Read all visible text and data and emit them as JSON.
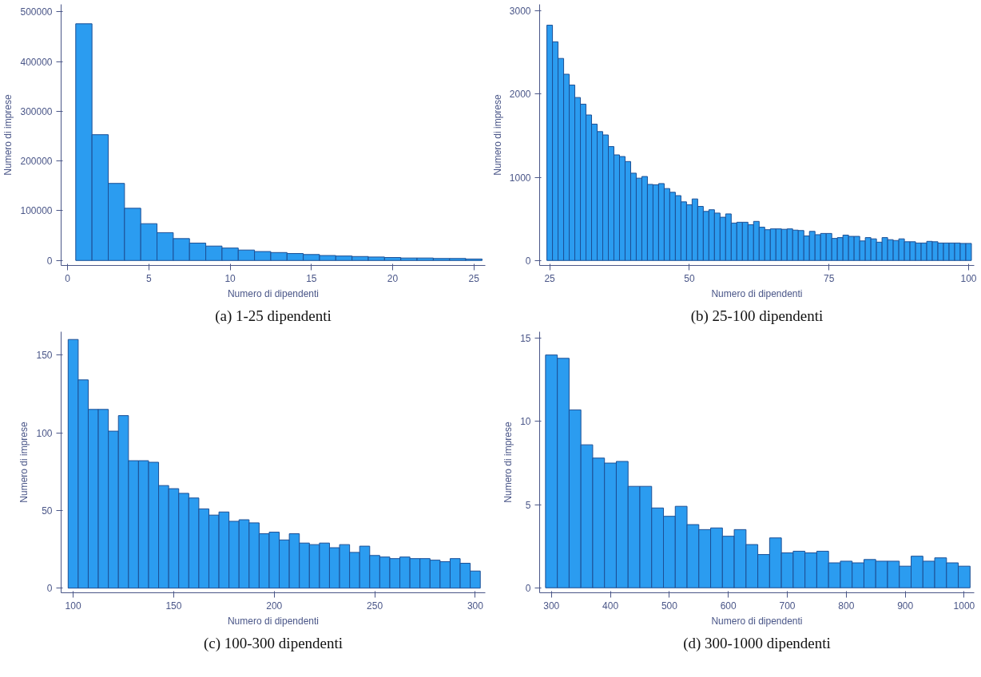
{
  "chart_data": [
    {
      "type": "histogram",
      "title": "(a) 1-25 dipendenti",
      "xlabel": "Numero di dipendenti",
      "ylabel": "Numero di imprese",
      "color": "#2b9cf0",
      "bins": [
        0.5,
        1.5,
        2.5,
        3.5,
        4.5,
        5.5,
        6.5,
        7.5,
        8.5,
        9.5,
        10.5,
        11.5,
        12.5,
        13.5,
        14.5,
        15.5,
        16.5,
        17.5,
        18.5,
        19.5,
        20.5,
        21.5,
        22.5,
        23.5,
        24.5,
        25.5
      ],
      "values": [
        476000,
        253000,
        155000,
        105000,
        74000,
        56000,
        44000,
        35000,
        29000,
        25000,
        21000,
        18000,
        16000,
        14000,
        12000,
        10000,
        9000,
        8000,
        7000,
        6000,
        5000,
        5000,
        4000,
        4000,
        3000
      ],
      "xlim": [
        -0.4,
        25.7
      ],
      "xticks": [
        0,
        5,
        10,
        15,
        20,
        25
      ],
      "ylim": [
        -10000,
        515000
      ],
      "yticks": [
        0,
        100000,
        200000,
        300000,
        400000,
        500000
      ]
    },
    {
      "type": "histogram",
      "title": "(b) 25-100 dipendenti",
      "xlabel": "Numero di dipendenti",
      "ylabel": "Numero di imprese",
      "color": "#2b9cf0",
      "bins": [
        24.5,
        25.5,
        26.5,
        27.5,
        28.5,
        29.5,
        30.5,
        31.5,
        32.5,
        33.5,
        34.5,
        35.5,
        36.5,
        37.5,
        38.5,
        39.5,
        40.5,
        41.5,
        42.5,
        43.5,
        44.5,
        45.5,
        46.5,
        47.5,
        48.5,
        49.5,
        50.5,
        51.5,
        52.5,
        53.5,
        54.5,
        55.5,
        56.5,
        57.5,
        58.5,
        59.5,
        60.5,
        61.5,
        62.5,
        63.5,
        64.5,
        65.5,
        66.5,
        67.5,
        68.5,
        69.5,
        70.5,
        71.5,
        72.5,
        73.5,
        74.5,
        75.5,
        76.5,
        77.5,
        78.5,
        79.5,
        80.5,
        81.5,
        82.5,
        83.5,
        84.5,
        85.5,
        86.5,
        87.5,
        88.5,
        89.5,
        90.5,
        91.5,
        92.5,
        93.5,
        94.5,
        95.5,
        96.5,
        97.5,
        98.5,
        99.5,
        100.5
      ],
      "values": [
        2830,
        2630,
        2430,
        2240,
        2110,
        1960,
        1880,
        1750,
        1640,
        1550,
        1510,
        1370,
        1270,
        1250,
        1190,
        1050,
        990,
        1010,
        915,
        910,
        925,
        865,
        820,
        780,
        705,
        670,
        740,
        650,
        590,
        610,
        570,
        520,
        560,
        450,
        460,
        460,
        430,
        470,
        400,
        370,
        380,
        380,
        375,
        380,
        365,
        360,
        295,
        350,
        310,
        325,
        325,
        265,
        275,
        305,
        290,
        290,
        235,
        275,
        260,
        220,
        275,
        250,
        240,
        260,
        225,
        225,
        210,
        210,
        230,
        225,
        210,
        210,
        210,
        210,
        205,
        205
      ],
      "xlim": [
        23.2,
        101.0
      ],
      "xticks": [
        25,
        50,
        75,
        100
      ],
      "ylim": [
        -60,
        3080
      ],
      "yticks": [
        0,
        1000,
        2000,
        3000
      ]
    },
    {
      "type": "histogram",
      "title": "(c) 100-300 dipendenti",
      "xlabel": "Numero di dipendenti",
      "ylabel": "Numero di imprese",
      "color": "#2b9cf0",
      "bins": [
        97.5,
        102.5,
        107.5,
        112.5,
        117.5,
        122.5,
        127.5,
        132.5,
        137.5,
        142.5,
        147.5,
        152.5,
        157.5,
        162.5,
        167.5,
        172.5,
        177.5,
        182.5,
        187.5,
        192.5,
        197.5,
        202.5,
        207.5,
        212.5,
        217.5,
        222.5,
        227.5,
        232.5,
        237.5,
        242.5,
        247.5,
        252.5,
        257.5,
        262.5,
        267.5,
        272.5,
        277.5,
        282.5,
        287.5,
        292.5,
        297.5,
        302.5
      ],
      "values": [
        160,
        134,
        115,
        115,
        101,
        111,
        82,
        82,
        81,
        66,
        64,
        61,
        58,
        51,
        47,
        49,
        43,
        44,
        42,
        35,
        36,
        31,
        35,
        29,
        28,
        29,
        26,
        28,
        23,
        27,
        21,
        20,
        19,
        20,
        19,
        19,
        18,
        17,
        19,
        16,
        11
      ],
      "xlim": [
        94,
        305
      ],
      "xticks": [
        100,
        150,
        200,
        250,
        300
      ],
      "ylim": [
        -3,
        165
      ],
      "yticks": [
        0,
        50,
        100,
        150
      ]
    },
    {
      "type": "histogram",
      "title": "(d) 300-1000 dipendenti",
      "xlabel": "Numero di dipendenti",
      "ylabel": "Numero di imprese",
      "color": "#2b9cf0",
      "bins": [
        290,
        310,
        330,
        350,
        370,
        390,
        410,
        430,
        450,
        470,
        490,
        510,
        530,
        550,
        570,
        590,
        610,
        630,
        650,
        670,
        690,
        710,
        730,
        750,
        770,
        790,
        810,
        830,
        850,
        870,
        890,
        910,
        930,
        950,
        970,
        990,
        1010
      ],
      "values": [
        14.0,
        13.8,
        10.7,
        8.6,
        7.8,
        7.5,
        7.6,
        6.1,
        6.1,
        4.8,
        4.3,
        4.9,
        3.8,
        3.5,
        3.6,
        3.1,
        3.5,
        2.6,
        2.0,
        3.0,
        2.1,
        2.2,
        2.1,
        2.2,
        1.5,
        1.6,
        1.5,
        1.7,
        1.6,
        1.6,
        1.3,
        1.9,
        1.6,
        1.8,
        1.5,
        1.3
      ],
      "xlim": [
        280,
        1017
      ],
      "xticks": [
        300,
        400,
        500,
        600,
        700,
        800,
        900,
        1000
      ],
      "ylim": [
        -0.3,
        15.4
      ],
      "yticks": [
        0,
        5,
        10,
        15
      ]
    }
  ]
}
